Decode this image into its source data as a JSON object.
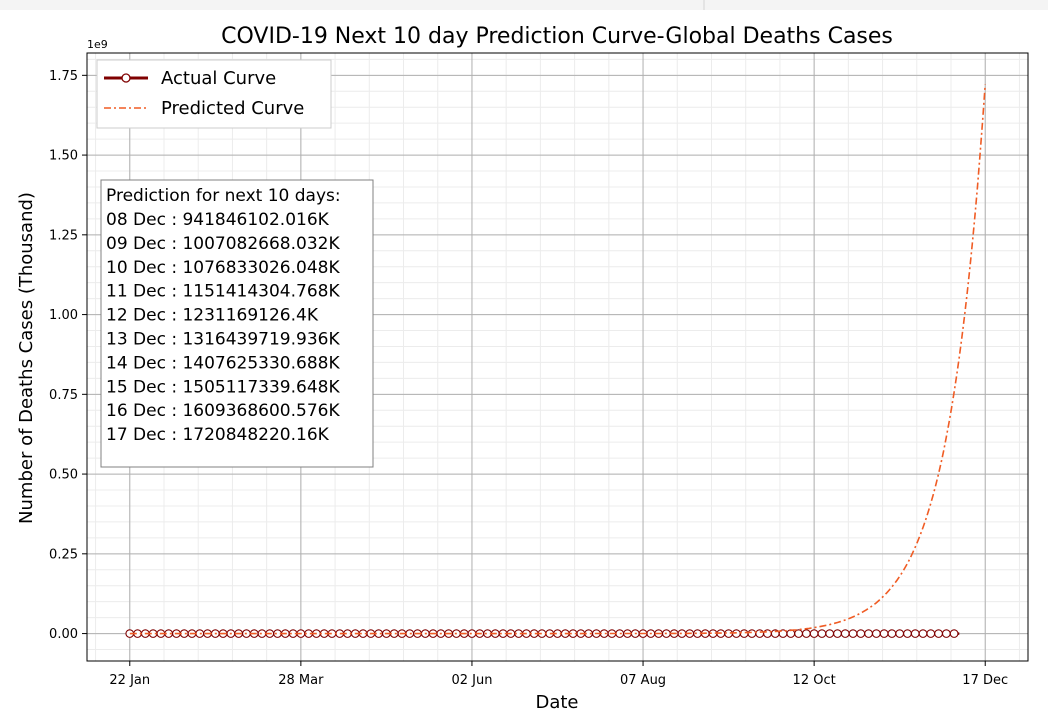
{
  "chart_data": {
    "type": "line",
    "title": "COVID-19 Next 10 day Prediction Curve-Global Deaths Cases",
    "xlabel": "Date",
    "ylabel": "Number of Deaths Cases (Thousand)",
    "y_scale_label": "1e9",
    "x_tick_labels": [
      "22 Jan",
      "28 Mar",
      "02 Jun",
      "07 Aug",
      "12 Oct",
      "17 Dec"
    ],
    "x_tick_day_index": [
      0,
      66,
      132,
      198,
      264,
      330
    ],
    "x_range_day_index": [
      -16.5,
      346.5
    ],
    "y_tick_labels": [
      "0.00",
      "0.25",
      "0.50",
      "0.75",
      "1.00",
      "1.25",
      "1.50",
      "1.75"
    ],
    "y_ticks": [
      0,
      0.25,
      0.5,
      0.75,
      1.0,
      1.25,
      1.5,
      1.75
    ],
    "ylim": [
      -0.086,
      1.82
    ],
    "grid": true,
    "legend_position": "top-left",
    "series": [
      {
        "name": "Actual Curve",
        "style": "solid-with-open-circle-markers",
        "color": "#7f0000",
        "marker_face": "#ffffff",
        "x_day_index_range": [
          0,
          320
        ],
        "y_approx": 0.0
      },
      {
        "name": "Predicted Curve",
        "style": "dash-dot",
        "color": "#f05c24",
        "x_day_index_range": [
          0,
          330
        ],
        "model": "exponential",
        "end_value": 1.720848
      }
    ],
    "annotation_box": {
      "heading": "Prediction for next 10 days:",
      "lines": [
        "08 Dec : 941846102.016K",
        "09 Dec : 1007082668.032K",
        "10 Dec : 1076833026.048K",
        "11 Dec : 1151414304.768K",
        "12 Dec : 1231169126.4K",
        "13 Dec : 1316439719.936K",
        "14 Dec : 1407625330.688K",
        "15 Dec : 1505117339.648K",
        "16 Dec : 1609368600.576K",
        "17 Dec : 1720848220.16K"
      ]
    }
  }
}
